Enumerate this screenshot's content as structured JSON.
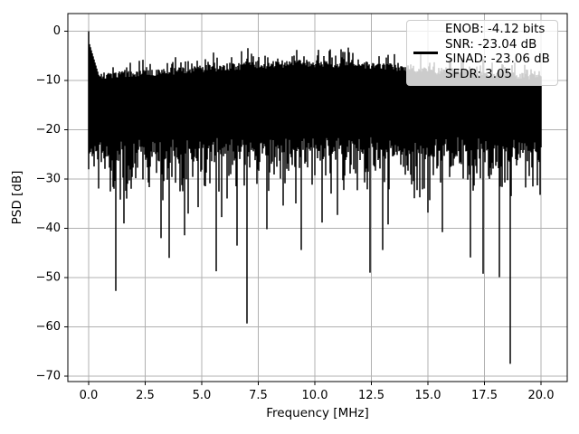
{
  "chart_data": {
    "type": "line",
    "title": "",
    "xlabel": "Frequency [MHz]",
    "ylabel": "PSD [dB]",
    "xlim": [
      -0.92,
      21.16
    ],
    "ylim": [
      -71.1,
      3.6
    ],
    "xtick_values": [
      0,
      2.5,
      5,
      7.5,
      10,
      12.5,
      15,
      17.5,
      20
    ],
    "xtick_labels": [
      "0.0",
      "2.5",
      "5.0",
      "7.5",
      "10.0",
      "12.5",
      "15.0",
      "17.5",
      "20.0"
    ],
    "ytick_values": [
      0,
      -10,
      -20,
      -30,
      -40,
      -50,
      -60,
      -70
    ],
    "ytick_labels": [
      "0",
      "−10",
      "−20",
      "−30",
      "−40",
      "−50",
      "−60",
      "−70"
    ],
    "grid": true,
    "grid_color": "#b0b0b0",
    "line_color": "#000000",
    "background_color": "#ffffff",
    "legend": {
      "location": "upper right",
      "handle": "black-line-sample",
      "label_lines": [
        "ENOB: -4.12 bits",
        "SNR: -23.04 dB",
        "SINAD: -23.06 dB",
        "SFDR: 3.05"
      ]
    },
    "stats": {
      "enob_bits": -4.12,
      "snr_db": -23.04,
      "sinad_db": -23.06,
      "sfdr": 3.05
    },
    "series": [
      {
        "name": "PSD",
        "kind": "dense-noise-floor",
        "x_range_mhz": [
          0,
          20
        ],
        "step_mhz": 0.04,
        "seed": 11,
        "dc_peak": {
          "freq_mhz": 0.0,
          "db": 0.0,
          "decay_top_db_per_mhz": 15.5,
          "decay_until_mhz": 0.46
        },
        "top_envelope": {
          "base_db": -9.4,
          "bump_amp_db": 3.0,
          "bump_center_mhz": 9.6,
          "bump_width": 55
        },
        "dense_floor": {
          "base_db": -21.3,
          "spread_db": 2.6,
          "tail_scale_db": 3.6,
          "tail_clamp_db": -35.5,
          "rare_deep_prob": 0.02,
          "rare_deep_range_db": [
            -33,
            -42
          ]
        },
        "deep_spikes": [
          [
            1.2,
            -52.7
          ],
          [
            1.55,
            -39.0
          ],
          [
            3.2,
            -42.0
          ],
          [
            3.55,
            -46.0
          ],
          [
            4.4,
            -37.0
          ],
          [
            5.65,
            -48.7
          ],
          [
            6.55,
            -43.5
          ],
          [
            7.0,
            -59.3
          ],
          [
            9.4,
            -44.4
          ],
          [
            11.0,
            -37.3
          ],
          [
            12.45,
            -49.0
          ],
          [
            13.0,
            -44.4
          ],
          [
            13.25,
            -39.2
          ],
          [
            15.0,
            -36.8
          ],
          [
            16.9,
            -45.9
          ],
          [
            17.45,
            -49.2
          ],
          [
            18.15,
            -49.9
          ],
          [
            18.65,
            -67.5
          ]
        ]
      }
    ]
  }
}
